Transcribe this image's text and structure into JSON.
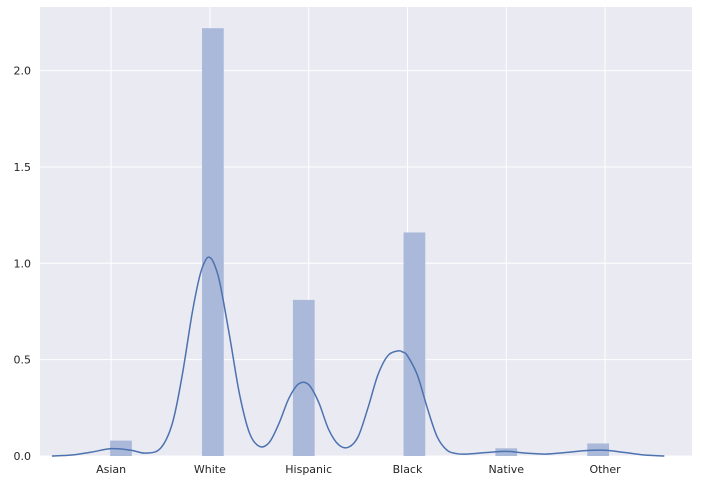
{
  "chart_data": {
    "type": "bar",
    "description_type": "histogram-with-kde",
    "categories": [
      "Asian",
      "White",
      "Hispanic",
      "Black",
      "Native",
      "Other"
    ],
    "category_positions": [
      0,
      1,
      2,
      3,
      4,
      5
    ],
    "bars": [
      {
        "x": 0.1,
        "value": 0.08
      },
      {
        "x": 1.03,
        "value": 2.22
      },
      {
        "x": 1.95,
        "value": 0.81
      },
      {
        "x": 3.07,
        "value": 1.16
      },
      {
        "x": 4.0,
        "value": 0.04
      },
      {
        "x": 4.93,
        "value": 0.065
      }
    ],
    "kde": {
      "x": [
        -0.6,
        -0.4,
        -0.2,
        0.0,
        0.2,
        0.35,
        0.5,
        0.62,
        0.72,
        0.82,
        0.9,
        0.96,
        1.0,
        1.04,
        1.1,
        1.2,
        1.3,
        1.4,
        1.5,
        1.6,
        1.7,
        1.8,
        1.9,
        2.0,
        2.1,
        2.2,
        2.3,
        2.4,
        2.5,
        2.6,
        2.7,
        2.8,
        2.9,
        2.95,
        3.0,
        3.1,
        3.2,
        3.3,
        3.4,
        3.5,
        3.6,
        3.8,
        4.0,
        4.2,
        4.4,
        4.6,
        4.8,
        5.0,
        5.2,
        5.4,
        5.6
      ],
      "y": [
        0.0,
        0.005,
        0.02,
        0.038,
        0.03,
        0.015,
        0.04,
        0.17,
        0.42,
        0.74,
        0.94,
        1.02,
        1.03,
        1.0,
        0.9,
        0.62,
        0.32,
        0.12,
        0.05,
        0.07,
        0.17,
        0.3,
        0.375,
        0.37,
        0.28,
        0.14,
        0.06,
        0.045,
        0.1,
        0.25,
        0.42,
        0.52,
        0.545,
        0.54,
        0.52,
        0.42,
        0.25,
        0.1,
        0.03,
        0.012,
        0.01,
        0.018,
        0.024,
        0.015,
        0.01,
        0.018,
        0.028,
        0.03,
        0.018,
        0.005,
        0.0
      ]
    },
    "yticks": [
      0.0,
      0.5,
      1.0,
      1.5,
      2.0
    ],
    "ytick_labels": [
      "0.0",
      "0.5",
      "1.0",
      "1.5",
      "2.0"
    ],
    "xlim": [
      -0.72,
      5.88
    ],
    "ylim": [
      0,
      2.33
    ],
    "xlabel": "",
    "ylabel": "",
    "title": "",
    "grid": true,
    "colors": {
      "background": "#eaeaf2",
      "grid": "#ffffff",
      "bar": "#aab9d9",
      "line": "#4c72b0"
    }
  }
}
